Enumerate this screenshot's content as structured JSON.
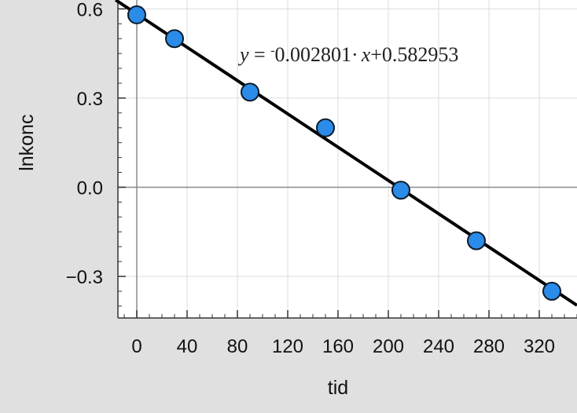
{
  "chart_data": {
    "type": "scatter",
    "xlabel": "tid",
    "ylabel": "lnkonc",
    "xlim": [
      -15,
      350
    ],
    "ylim": [
      -0.44,
      0.63
    ],
    "x_ticks": [
      0,
      40,
      80,
      120,
      160,
      200,
      240,
      280,
      320
    ],
    "y_ticks": [
      0.6,
      0.3,
      0.0,
      -0.3
    ],
    "x_tick_labels": [
      "0",
      "40",
      "80",
      "120",
      "160",
      "200",
      "240",
      "280",
      "320"
    ],
    "y_tick_labels": [
      "0.6",
      "0.3",
      "0.0",
      "−0.3"
    ],
    "grid": true,
    "x_minor_step": 10,
    "y_minor_step": 0.05,
    "series": [
      {
        "x": [
          0,
          30,
          90,
          150,
          210,
          270,
          330
        ],
        "y": [
          0.58,
          0.5,
          0.32,
          0.2,
          -0.01,
          -0.18,
          -0.35
        ],
        "color": "#2b8be8"
      }
    ],
    "regression": {
      "slope": -0.002801,
      "intercept": 0.582953,
      "color": "#000000",
      "equation": {
        "y_var": "y",
        "equals": " = ",
        "neg_sign": "-",
        "slope_text": "0.002801",
        "dot": "·",
        "x_var": "x",
        "intercept_text": "+0.582953"
      }
    }
  }
}
